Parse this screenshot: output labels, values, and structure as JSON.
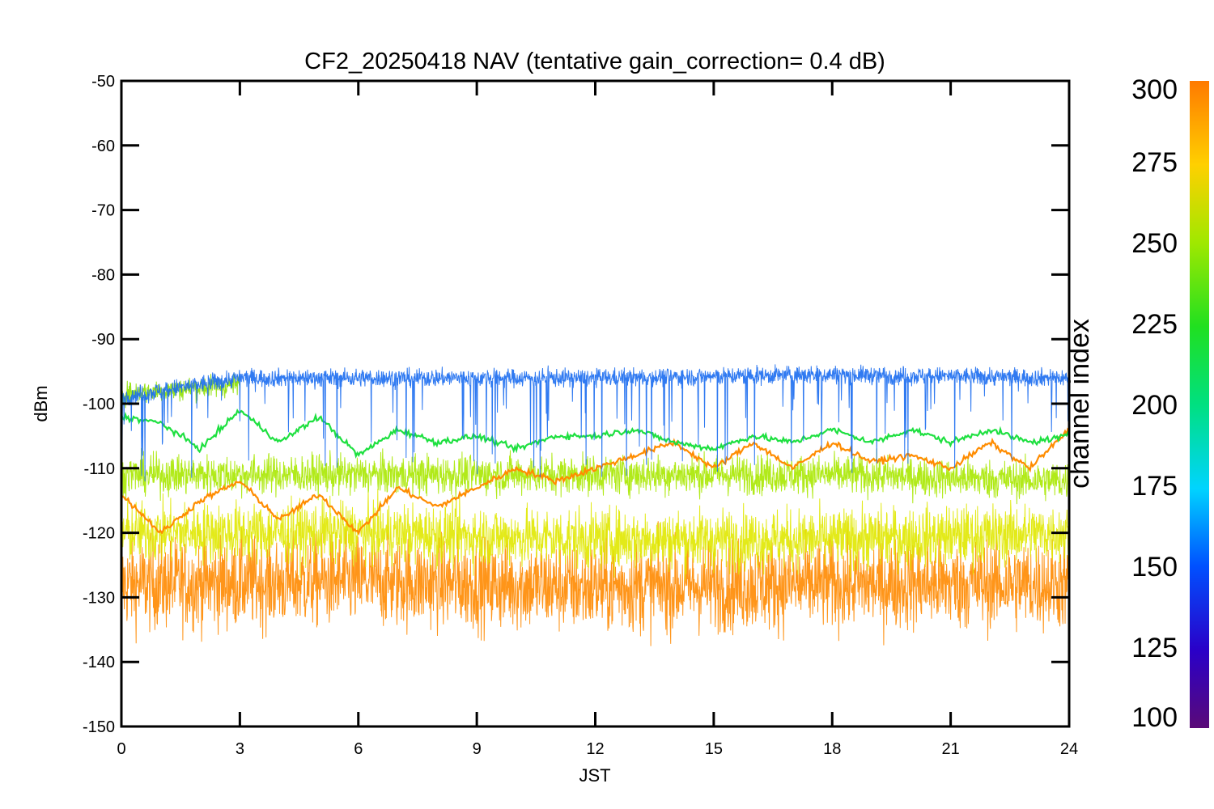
{
  "chart_data": {
    "type": "line",
    "title": "CF2_20250418 NAV (tentative gain_correction=  0.4 dB)",
    "xlabel": "JST",
    "ylabel": "dBm",
    "xlim": [
      0,
      24
    ],
    "ylim": [
      -150,
      -50
    ],
    "x_ticks": [
      0,
      3,
      6,
      9,
      12,
      15,
      18,
      21,
      24
    ],
    "y_ticks": [
      -50,
      -60,
      -70,
      -80,
      -90,
      -100,
      -110,
      -120,
      -130,
      -140,
      -150
    ],
    "colorbar": {
      "label": "channel index",
      "range": [
        100,
        300
      ],
      "ticks": [
        100,
        125,
        150,
        175,
        200,
        225,
        250,
        275,
        300
      ]
    },
    "grid": false,
    "series": [
      {
        "channel": 150,
        "color": "#1a6cf0",
        "kind": "noisy_band",
        "x": [
          0,
          3,
          6,
          12,
          18,
          24
        ],
        "values": [
          -99,
          -96,
          -96,
          -96,
          -95.5,
          -96
        ]
      },
      {
        "channel": 255,
        "color": "#8ee000",
        "kind": "noisy_band",
        "x": [
          0,
          1,
          2,
          3
        ],
        "values": [
          -98.5,
          -98,
          -97.5,
          -97
        ]
      },
      {
        "channel": 225,
        "color": "#1ee040",
        "kind": "oscillating",
        "x": [
          0,
          1,
          2,
          3,
          4,
          5,
          6,
          7,
          8,
          9,
          10,
          11,
          12,
          13,
          14,
          15,
          16,
          17,
          18,
          19,
          20,
          21,
          22,
          23,
          24
        ],
        "values": [
          -102,
          -103,
          -107,
          -101,
          -106,
          -102,
          -108,
          -104,
          -106,
          -105,
          -107,
          -105,
          -105,
          -104,
          -106,
          -107,
          -105,
          -106,
          -104,
          -106,
          -104,
          -106,
          -104,
          -106,
          -105
        ]
      },
      {
        "channel": 290,
        "color": "#ff8c00",
        "kind": "oscillating",
        "x": [
          0,
          1,
          2,
          3,
          4,
          5,
          6,
          7,
          8,
          9,
          10,
          11,
          12,
          13,
          14,
          15,
          16,
          17,
          18,
          19,
          20,
          21,
          22,
          23,
          24
        ],
        "values": [
          -114,
          -120,
          -115,
          -112,
          -118,
          -114,
          -120,
          -113,
          -116,
          -113,
          -110,
          -112,
          -110,
          -108,
          -106,
          -110,
          -106,
          -110,
          -106,
          -109,
          -108,
          -110,
          -106,
          -110,
          -104
        ]
      },
      {
        "channel": 245,
        "color": "#a8e800",
        "kind": "noisy_band",
        "x": [
          0,
          6,
          12,
          18,
          24
        ],
        "values": [
          -111,
          -111,
          -111,
          -111,
          -112
        ]
      },
      {
        "channel": 270,
        "color": "#e0e800",
        "kind": "noisy_band",
        "x": [
          0,
          6,
          12,
          18,
          24
        ],
        "values": [
          -120,
          -120,
          -121,
          -121,
          -120
        ]
      },
      {
        "channel": 295,
        "color": "#ff8a00",
        "kind": "noisy_band",
        "x": [
          0,
          6,
          12,
          18,
          24
        ],
        "values": [
          -128,
          -127.5,
          -128.5,
          -128,
          -128
        ]
      }
    ]
  }
}
